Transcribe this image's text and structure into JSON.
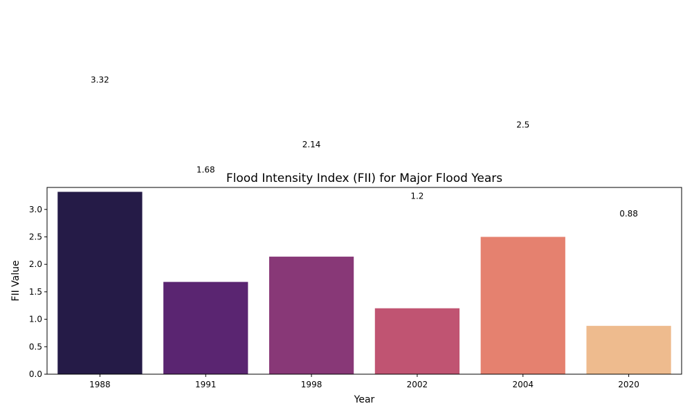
{
  "chart_data": {
    "type": "bar",
    "title": "Flood Intensity Index (FII) for Major Flood Years",
    "xlabel": "Year",
    "ylabel": "FII Value",
    "categories": [
      "1988",
      "1991",
      "1998",
      "2002",
      "2004",
      "2020"
    ],
    "values": [
      3.32,
      1.68,
      2.14,
      1.2,
      2.5,
      0.88
    ],
    "value_labels": [
      "3.32",
      "1.68",
      "2.14",
      "1.2",
      "2.5",
      "0.88"
    ],
    "colors": [
      "#251b47",
      "#5a2571",
      "#883877",
      "#c05472",
      "#e5816f",
      "#eebb8e"
    ],
    "yticks": [
      "0.0",
      "0.5",
      "1.0",
      "1.5",
      "2.0",
      "2.5",
      "3.0"
    ],
    "ylim": [
      0,
      3.4
    ],
    "grid": false,
    "legend": "none"
  }
}
